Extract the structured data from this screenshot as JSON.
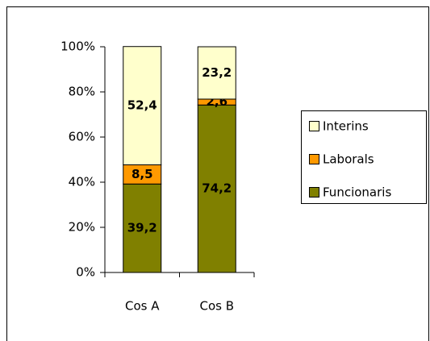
{
  "chart_data": {
    "type": "stacked_bar",
    "categories": [
      "Cos A",
      "Cos B"
    ],
    "series": [
      {
        "name": "Funcionaris",
        "color": "#808000",
        "values": [
          39.2,
          74.2
        ],
        "value_labels": [
          "39,2",
          "74,2"
        ]
      },
      {
        "name": "Laborals",
        "color": "#ff9900",
        "values": [
          8.5,
          2.6
        ],
        "value_labels": [
          "8,5",
          "2,6"
        ]
      },
      {
        "name": "Interins",
        "color": "#ffffcc",
        "values": [
          52.4,
          23.2
        ],
        "value_labels": [
          "52,4",
          "23,2"
        ]
      }
    ],
    "ylim": [
      0,
      100
    ],
    "yticks": [
      {
        "value": 0,
        "label": "0%"
      },
      {
        "value": 20,
        "label": "20%"
      },
      {
        "value": 40,
        "label": "40%"
      },
      {
        "value": 60,
        "label": "60%"
      },
      {
        "value": 80,
        "label": "80%"
      },
      {
        "value": 100,
        "label": "100%"
      }
    ],
    "grid": false,
    "legend": "right"
  }
}
